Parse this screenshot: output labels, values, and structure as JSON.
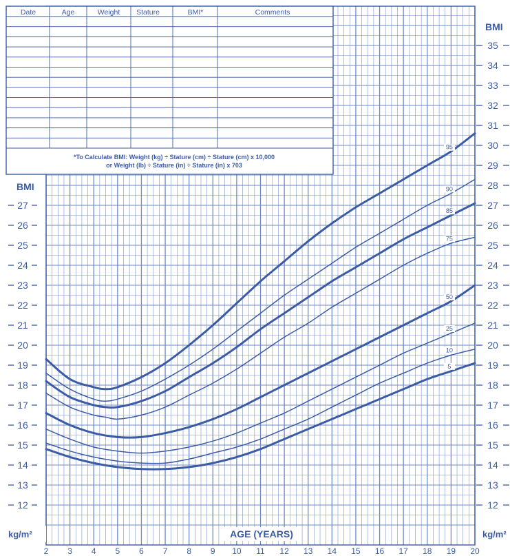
{
  "record_table": {
    "headers": [
      "Date",
      "Age",
      "Weight",
      "Stature",
      "BMI*",
      "Comments"
    ],
    "row_count": 13,
    "formula_line1": "*To Calculate BMI: Weight (kg) ÷ Stature (cm) ÷ Stature (cm) x 10,000",
    "formula_line2": "or Weight (lb) ÷ Stature (in) ÷ Stature (in) x 703"
  },
  "colors": {
    "ink": "#3b5ba5",
    "grid": "#6f8ac4",
    "background": "#ffffff"
  },
  "chart_data": {
    "type": "line",
    "xlabel": "AGE (YEARS)",
    "left_axis_title": "BMI",
    "right_axis_title": "BMI",
    "left_unit": "kg/m²",
    "right_unit": "kg/m²",
    "xlim": [
      2,
      20
    ],
    "ylim": [
      11,
      38
    ],
    "x_ticks": [
      2,
      3,
      4,
      5,
      6,
      7,
      8,
      9,
      10,
      11,
      12,
      13,
      14,
      15,
      16,
      17,
      18,
      19,
      20
    ],
    "left_ticks": [
      12,
      13,
      14,
      15,
      16,
      17,
      18,
      19,
      20,
      21,
      22,
      23,
      24,
      25,
      26,
      27
    ],
    "right_ticks": [
      12,
      13,
      14,
      15,
      16,
      17,
      18,
      19,
      20,
      21,
      22,
      23,
      24,
      25,
      26,
      27,
      28,
      29,
      30,
      31,
      32,
      33,
      34,
      35
    ],
    "grid": true,
    "series": [
      {
        "name": "95",
        "emphasis": true,
        "x": [
          2,
          3,
          4,
          4.5,
          5,
          6,
          7,
          8,
          9,
          10,
          11,
          12,
          13,
          14,
          15,
          16,
          17,
          18,
          19,
          20
        ],
        "y": [
          19.3,
          18.3,
          17.9,
          17.8,
          17.9,
          18.4,
          19.1,
          20.0,
          21.0,
          22.1,
          23.2,
          24.2,
          25.2,
          26.1,
          26.9,
          27.6,
          28.3,
          29.0,
          29.7,
          30.6
        ]
      },
      {
        "name": "90",
        "x": [
          2,
          3,
          4,
          4.5,
          5,
          6,
          7,
          8,
          9,
          10,
          11,
          12,
          13,
          14,
          15,
          16,
          17,
          18,
          19,
          20
        ],
        "y": [
          18.6,
          17.8,
          17.3,
          17.2,
          17.3,
          17.7,
          18.3,
          19.0,
          19.8,
          20.7,
          21.6,
          22.5,
          23.3,
          24.1,
          24.9,
          25.6,
          26.3,
          27.0,
          27.6,
          28.3
        ]
      },
      {
        "name": "85",
        "emphasis": true,
        "x": [
          2,
          3,
          4,
          4.5,
          5,
          6,
          7,
          8,
          9,
          10,
          11,
          12,
          13,
          14,
          15,
          16,
          17,
          18,
          19,
          20
        ],
        "y": [
          18.2,
          17.4,
          17.0,
          16.9,
          16.9,
          17.2,
          17.7,
          18.4,
          19.1,
          19.9,
          20.8,
          21.6,
          22.4,
          23.2,
          23.9,
          24.6,
          25.3,
          25.9,
          26.5,
          27.1
        ]
      },
      {
        "name": "75",
        "x": [
          2,
          3,
          4,
          4.5,
          5,
          6,
          7,
          8,
          9,
          10,
          11,
          12,
          13,
          14,
          15,
          16,
          17,
          18,
          19,
          20
        ],
        "y": [
          17.6,
          16.9,
          16.5,
          16.4,
          16.3,
          16.5,
          16.9,
          17.5,
          18.1,
          18.8,
          19.6,
          20.4,
          21.1,
          21.9,
          22.6,
          23.3,
          24.0,
          24.6,
          25.1,
          25.4
        ]
      },
      {
        "name": "50",
        "emphasis": true,
        "x": [
          2,
          3,
          4,
          5,
          6,
          7,
          8,
          9,
          10,
          11,
          12,
          13,
          14,
          15,
          16,
          17,
          18,
          19,
          20
        ],
        "y": [
          16.6,
          16.0,
          15.6,
          15.4,
          15.4,
          15.6,
          15.9,
          16.3,
          16.8,
          17.4,
          18.0,
          18.6,
          19.2,
          19.8,
          20.4,
          21.0,
          21.6,
          22.2,
          23.0
        ]
      },
      {
        "name": "25",
        "x": [
          2,
          3,
          4,
          5,
          6,
          7,
          8,
          9,
          10,
          11,
          12,
          13,
          14,
          15,
          16,
          17,
          18,
          19,
          20
        ],
        "y": [
          15.8,
          15.3,
          14.9,
          14.7,
          14.6,
          14.7,
          14.9,
          15.2,
          15.6,
          16.1,
          16.6,
          17.2,
          17.8,
          18.4,
          19.0,
          19.6,
          20.1,
          20.6,
          21.1
        ]
      },
      {
        "name": "10",
        "x": [
          2,
          3,
          4,
          5,
          6,
          7,
          8,
          9,
          10,
          11,
          12,
          13,
          14,
          15,
          16,
          17,
          18,
          19,
          20
        ],
        "y": [
          15.1,
          14.7,
          14.4,
          14.2,
          14.1,
          14.1,
          14.3,
          14.6,
          14.9,
          15.3,
          15.8,
          16.3,
          16.9,
          17.5,
          18.1,
          18.6,
          19.1,
          19.5,
          19.8
        ]
      },
      {
        "name": "5",
        "emphasis": true,
        "x": [
          2,
          3,
          4,
          5,
          6,
          7,
          8,
          9,
          10,
          11,
          12,
          13,
          14,
          15,
          16,
          17,
          18,
          19,
          20
        ],
        "y": [
          14.8,
          14.4,
          14.1,
          13.9,
          13.8,
          13.8,
          13.9,
          14.1,
          14.4,
          14.8,
          15.3,
          15.8,
          16.3,
          16.8,
          17.3,
          17.8,
          18.3,
          18.7,
          19.1
        ]
      }
    ]
  }
}
